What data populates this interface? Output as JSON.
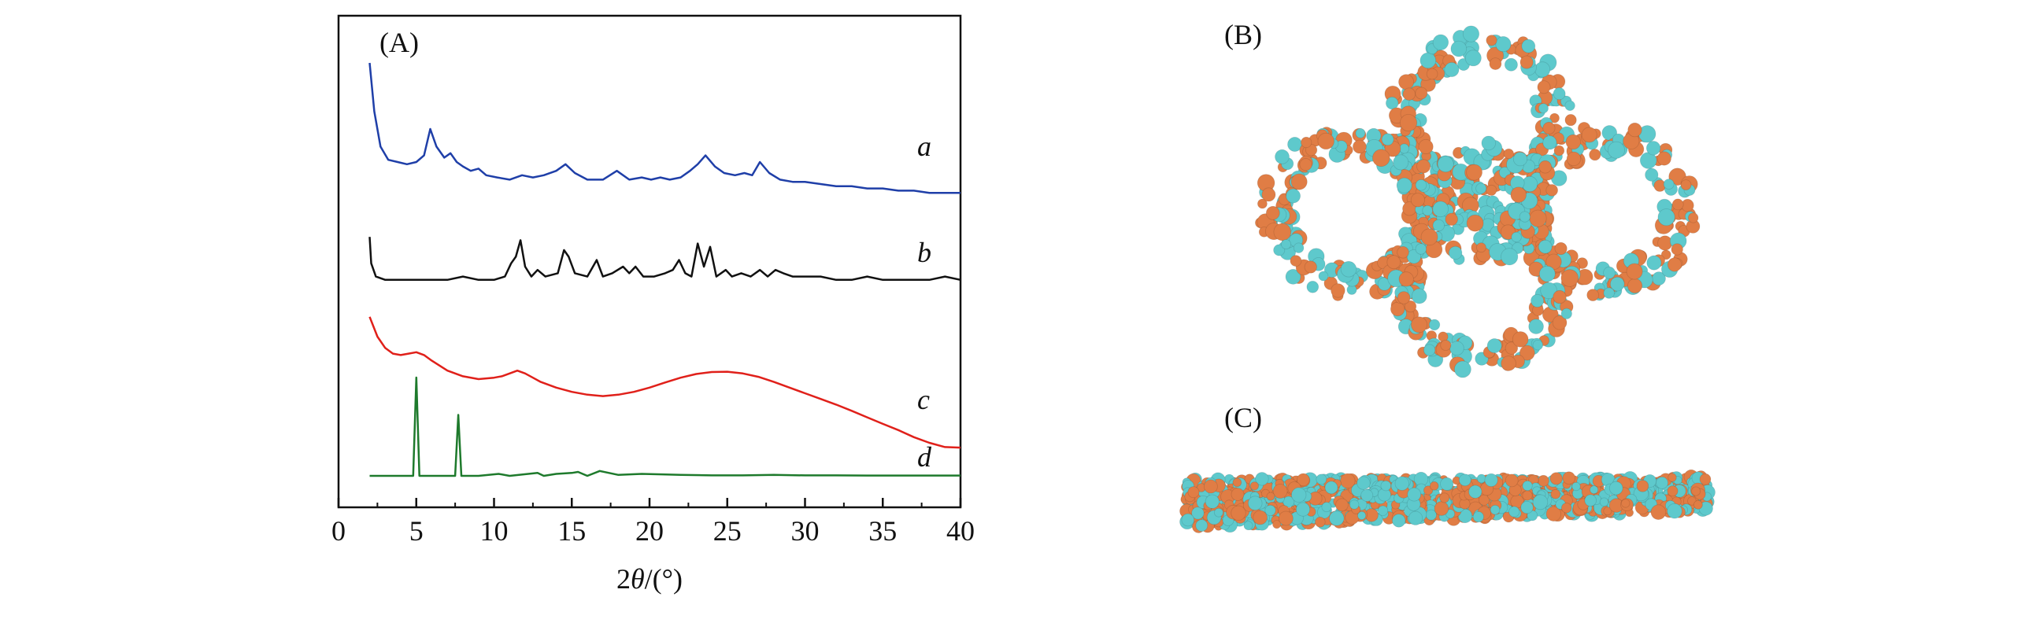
{
  "panels": {
    "a_label": "(A)",
    "b_label": "(B)",
    "c_label": "(C)"
  },
  "colors": {
    "a": "#1f3fa8",
    "b": "#111111",
    "c": "#e0201a",
    "d": "#1e7a2c",
    "orange": "#e07d45",
    "teal": "#5ec9cc"
  },
  "chart_data": {
    "type": "line",
    "title": "",
    "xlabel_pre": "2",
    "xlabel_theta": "θ",
    "xlabel_post": "/(°)",
    "ylabel": "",
    "xlim": [
      0,
      40
    ],
    "x_ticks": [
      "0",
      "5",
      "10",
      "15",
      "20",
      "25",
      "30",
      "35",
      "40"
    ],
    "y_ticks_visible": false,
    "grid": false,
    "series": [
      {
        "name": "a",
        "x": [
          2,
          2.3,
          2.7,
          3.2,
          3.8,
          4.4,
          5,
          5.5,
          5.9,
          6.3,
          6.8,
          7.2,
          7.6,
          8.0,
          8.5,
          9.0,
          9.5,
          10.2,
          11,
          11.8,
          12.5,
          13.2,
          14,
          14.6,
          15.2,
          16,
          17,
          17.9,
          18.7,
          19.5,
          20.1,
          20.7,
          21.3,
          22,
          22.6,
          23.1,
          23.6,
          24.2,
          24.8,
          25.5,
          26.1,
          26.6,
          27.1,
          27.7,
          28.4,
          29.2,
          30,
          31,
          32,
          33,
          34,
          35,
          36,
          37,
          38,
          39,
          40
        ],
        "y": [
          100,
          78,
          62,
          56,
          55,
          54,
          55,
          58,
          70,
          62,
          57,
          59,
          55,
          53,
          51,
          52,
          49,
          48,
          47,
          49,
          48,
          49,
          51,
          54,
          50,
          47,
          47,
          51,
          47,
          48,
          47,
          48,
          47,
          48,
          51,
          54,
          58,
          53,
          50,
          49,
          50,
          49,
          55,
          50,
          47,
          46,
          46,
          45,
          44,
          44,
          43,
          43,
          42,
          42,
          41,
          41,
          41
        ]
      },
      {
        "name": "b",
        "x": [
          2,
          2.1,
          2.4,
          3,
          4,
          5,
          6,
          7,
          8,
          9,
          10,
          10.7,
          11.1,
          11.4,
          11.7,
          12,
          12.4,
          12.8,
          13.3,
          14.1,
          14.5,
          14.8,
          15.2,
          16,
          16.6,
          17,
          17.6,
          18.3,
          18.7,
          19.1,
          19.6,
          20.3,
          21,
          21.5,
          21.9,
          22.3,
          22.7,
          23.1,
          23.5,
          23.9,
          24.3,
          24.9,
          25.3,
          25.9,
          26.5,
          27.1,
          27.6,
          28.1,
          28.6,
          29.2,
          30,
          31,
          32,
          33,
          34,
          35,
          36,
          37,
          38,
          39,
          40
        ],
        "y": [
          26,
          18,
          14,
          13,
          13,
          13,
          13,
          13,
          14,
          13,
          13,
          14,
          18,
          20,
          25,
          17,
          14,
          16,
          14,
          15,
          22,
          20,
          15,
          14,
          19,
          14,
          15,
          17,
          15,
          17,
          14,
          14,
          15,
          16,
          19,
          15,
          14,
          24,
          17,
          23,
          14,
          16,
          14,
          15,
          14,
          16,
          14,
          16,
          15,
          14,
          14,
          14,
          13,
          13,
          14,
          13,
          13,
          13,
          13,
          14,
          13
        ]
      },
      {
        "name": "c",
        "x": [
          2,
          2.5,
          3,
          3.5,
          4,
          4.5,
          5,
          5.5,
          6,
          7,
          8,
          9,
          10,
          10.5,
          11,
          11.5,
          12,
          12.5,
          13,
          14,
          15,
          16,
          17,
          18,
          19,
          20,
          21,
          22,
          23,
          24,
          25,
          26,
          27,
          28,
          29,
          30,
          31,
          32,
          33,
          34,
          35,
          36,
          37,
          38,
          39,
          40
        ],
        "y": [
          62,
          55,
          51,
          49,
          48.5,
          49,
          49.5,
          48.5,
          46.5,
          43,
          41,
          40,
          40.5,
          41,
          42,
          43,
          42,
          40.5,
          39,
          37,
          35.5,
          34.5,
          34,
          34.5,
          35.5,
          37,
          38.8,
          40.5,
          41.8,
          42.5,
          42.6,
          42,
          40.8,
          39,
          37,
          35,
          33,
          31,
          28.8,
          26.5,
          24.2,
          22,
          19.5,
          17.5,
          16,
          15.8
        ]
      },
      {
        "name": "d",
        "x": [
          2,
          4,
          4.8,
          5.0,
          5.2,
          6,
          7.5,
          7.7,
          7.9,
          9,
          10.3,
          11,
          12.8,
          13.2,
          14.0,
          15.0,
          15.4,
          16,
          16.8,
          18,
          19.5,
          20.8,
          22,
          24,
          26,
          28,
          30,
          32,
          34,
          36,
          38,
          40
        ],
        "y": [
          0,
          0,
          0,
          100,
          0,
          0,
          0,
          62,
          0,
          0,
          2,
          0,
          3,
          0,
          2,
          3,
          4,
          0,
          5,
          1,
          2,
          1.5,
          1,
          0.5,
          0.5,
          1,
          0.5,
          0.5,
          0.3,
          0.3,
          0.3,
          0.3
        ]
      }
    ],
    "series_labels": [
      "a",
      "b",
      "c",
      "d"
    ]
  }
}
